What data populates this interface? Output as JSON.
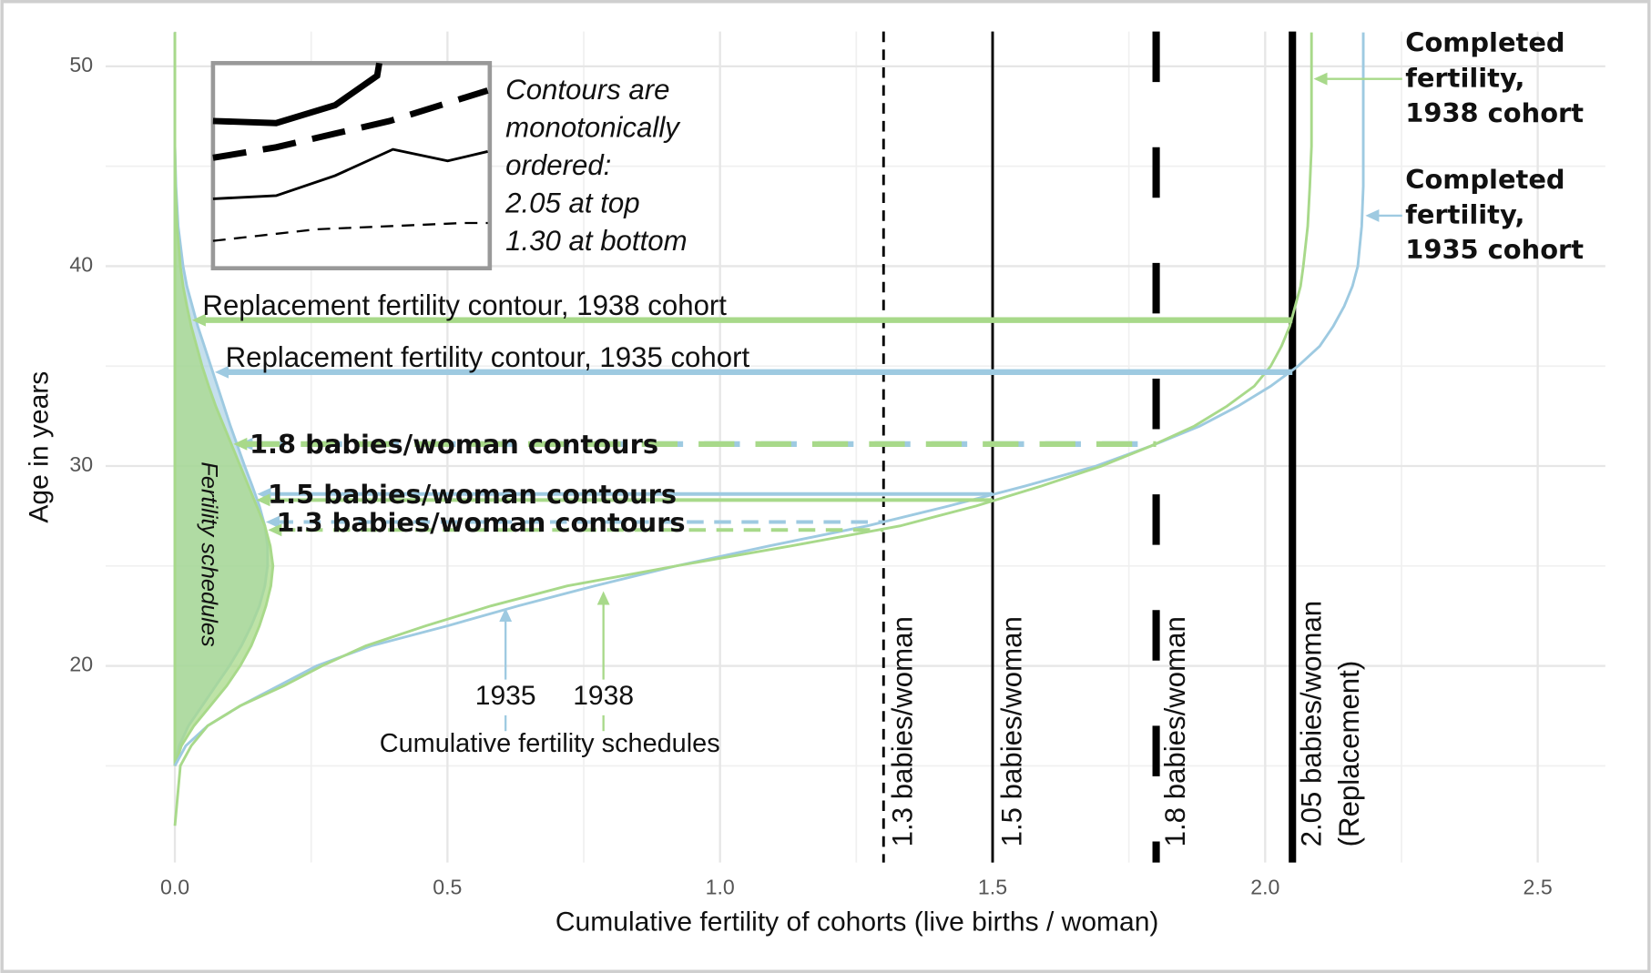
{
  "chart_data": {
    "type": "line",
    "x_label": "Cumulative fertility of cohorts (live births / woman)",
    "y_label": "Age in years",
    "xlim": [
      -0.127,
      2.624
    ],
    "ylim": [
      10.16,
      51.74
    ],
    "xticks": [
      {
        "value": 0,
        "label": "0.0"
      },
      0.5,
      {
        "value": 1,
        "label": "1.0"
      },
      1.5,
      {
        "value": 2,
        "label": "2.0"
      },
      2.5
    ],
    "yticks": [
      20,
      30,
      40,
      50
    ],
    "minor_xticks": [
      0.25,
      0.75,
      1.25,
      1.75,
      2.25
    ],
    "minor_yticks": [
      15,
      25,
      35,
      45
    ],
    "grid": true,
    "ages": [
      12,
      15,
      16,
      17,
      18,
      19,
      20,
      21,
      22,
      23,
      24,
      25,
      26,
      27,
      28,
      29,
      30,
      31,
      32,
      33,
      34,
      35,
      36,
      37,
      38,
      39,
      40,
      42,
      44,
      46,
      48,
      50,
      51.7
    ],
    "schedule_ages": [
      15,
      16,
      17,
      18,
      19,
      20,
      21,
      22,
      23,
      24,
      25,
      26,
      27,
      28,
      29,
      30,
      31,
      32,
      33,
      34,
      35,
      36,
      37,
      38,
      39,
      40,
      42,
      44,
      46,
      48,
      50,
      51.7
    ],
    "series": [
      {
        "name": "1935",
        "color": "#9ecae1",
        "label_color": "#6f8fa6",
        "values": [
          null,
          0,
          0.02,
          0.06,
          0.12,
          0.19,
          0.26,
          0.36,
          0.5,
          0.63,
          0.77,
          0.92,
          1.09,
          1.27,
          1.42,
          1.56,
          1.69,
          1.79,
          1.88,
          1.95,
          2.01,
          2.06,
          2.1,
          2.125,
          2.145,
          2.16,
          2.17,
          2.177,
          2.18,
          2.18,
          2.18,
          2.18,
          2.18
        ],
        "schedule": [
          0,
          0.008,
          0.025,
          0.05,
          0.075,
          0.1,
          0.122,
          0.14,
          0.155,
          0.165,
          0.17,
          0.17,
          0.165,
          0.155,
          0.142,
          0.128,
          0.115,
          0.102,
          0.09,
          0.078,
          0.066,
          0.054,
          0.042,
          0.032,
          0.022,
          0.015,
          0.006,
          0.002,
          0,
          0,
          0,
          0
        ],
        "completed_label": [
          "Completed",
          "fertility,",
          "1935 cohort"
        ],
        "contours": [
          {
            "level": 2.05,
            "age": 34.7,
            "label": "Replacement fertility contour, 1935 cohort"
          },
          {
            "level": 1.8,
            "age": 31.1,
            "label": "1.8 babies/woman contours"
          },
          {
            "level": 1.5,
            "age": 28.6,
            "label": "1.5 babies/woman contours"
          },
          {
            "level": 1.3,
            "age": 27.2,
            "label": "1.3 babies/woman contours"
          }
        ]
      },
      {
        "name": "1938",
        "color": "#a8d98a",
        "label_color": "#8fb26d",
        "values": [
          0,
          0.01,
          0.03,
          0.06,
          0.12,
          0.2,
          0.27,
          0.35,
          0.46,
          0.58,
          0.72,
          0.92,
          1.13,
          1.33,
          1.47,
          1.59,
          1.7,
          1.79,
          1.87,
          1.93,
          1.98,
          2.01,
          2.03,
          2.045,
          2.055,
          2.065,
          2.07,
          2.078,
          2.082,
          2.085,
          2.085,
          2.085,
          2.085
        ],
        "schedule": [
          0,
          0.012,
          0.035,
          0.065,
          0.095,
          0.12,
          0.14,
          0.155,
          0.167,
          0.176,
          0.18,
          0.175,
          0.165,
          0.15,
          0.135,
          0.12,
          0.105,
          0.09,
          0.075,
          0.062,
          0.05,
          0.04,
          0.03,
          0.022,
          0.015,
          0.01,
          0.004,
          0.001,
          0,
          0,
          0,
          0
        ],
        "completed_label": [
          "Completed",
          "fertility,",
          "1938 cohort"
        ],
        "contours": [
          {
            "level": 2.05,
            "age": 37.3,
            "label": "Replacement fertility contour, 1938 cohort"
          },
          {
            "level": 1.8,
            "age": 31.1
          },
          {
            "level": 1.5,
            "age": 28.3
          },
          {
            "level": 1.3,
            "age": 26.8
          }
        ]
      }
    ],
    "reference_lines": [
      {
        "value": 1.3,
        "label": [
          "1.3 babies/woman"
        ],
        "linestyle": "dashed",
        "weight": "thin"
      },
      {
        "value": 1.5,
        "label": [
          "1.5 babies/woman"
        ],
        "linestyle": "solid",
        "weight": "thin"
      },
      {
        "value": 1.8,
        "label": [
          "1.8 babies/woman"
        ],
        "linestyle": "longdash",
        "weight": "thick"
      },
      {
        "value": 2.05,
        "label": [
          "2.05 babies/woman",
          "(Replacement)"
        ],
        "linestyle": "solid",
        "weight": "thick"
      }
    ],
    "schedule_label": "Fertility schedules",
    "cumulative_label": "Cumulative fertility schedules",
    "inset_text": [
      "Contours are",
      "monotonically",
      "ordered:",
      "2.05 at top",
      "1.30 at bottom"
    ]
  }
}
